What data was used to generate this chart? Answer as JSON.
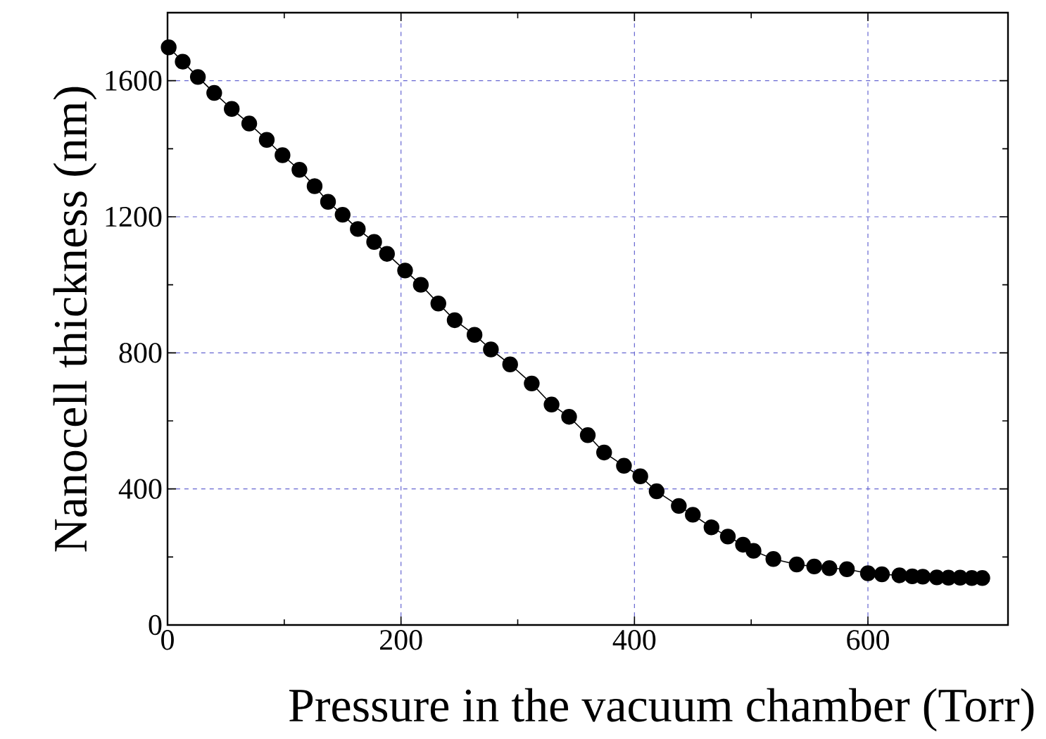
{
  "chart_data": {
    "type": "line",
    "xlabel": "Pressure in the vacuum chamber (Torr)",
    "ylabel": "Nanocell thickness (nm)",
    "xlim": [
      0,
      720
    ],
    "ylim": [
      0,
      1800
    ],
    "xticks": [
      0,
      200,
      400,
      600
    ],
    "yticks": [
      0,
      400,
      800,
      1200,
      1600
    ],
    "grid": true,
    "marker": "circle",
    "line_style": "solid",
    "series": [
      {
        "color": "#000000",
        "x": [
          1,
          13,
          26,
          40,
          55,
          70,
          85,
          98.5,
          113,
          126,
          137.5,
          150,
          163,
          177,
          188,
          203.5,
          217,
          232,
          246,
          263,
          277,
          293.5,
          312,
          329,
          344,
          360,
          374,
          391,
          405,
          419,
          438,
          450,
          466,
          480,
          493,
          502,
          519,
          539,
          554,
          567,
          582,
          600,
          612,
          627,
          638,
          647,
          659,
          669,
          679,
          689,
          698
        ],
        "values": [
          1698,
          1656,
          1611,
          1564,
          1517,
          1474,
          1426,
          1381,
          1338,
          1290,
          1244,
          1206,
          1164,
          1126,
          1091,
          1042,
          1000,
          945,
          896,
          853,
          810,
          766,
          710,
          648,
          612,
          558,
          507,
          468,
          437,
          393,
          350,
          324,
          287,
          260,
          236,
          218,
          194,
          178,
          172,
          167,
          164,
          152,
          149,
          146,
          143,
          142,
          140,
          139,
          139,
          138,
          138
        ]
      }
    ]
  }
}
